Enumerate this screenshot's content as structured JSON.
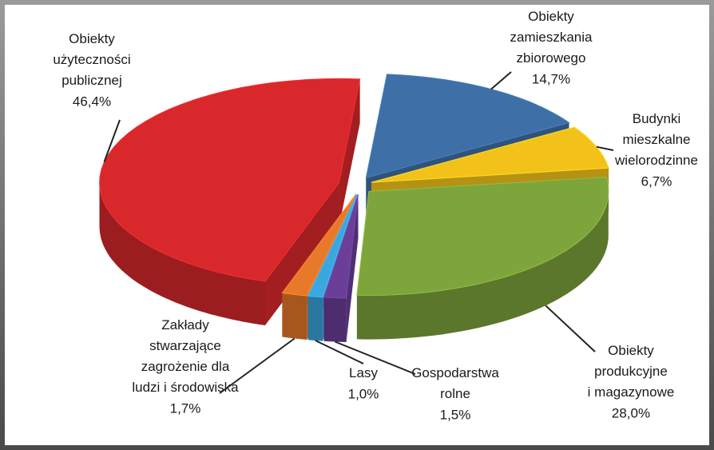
{
  "chart_data": {
    "type": "pie",
    "categories": [
      "Obiekty\nzamieszkania\nzbiorowego",
      "Budynki\nmieszkalne\nwielorodzinne",
      "Obiekty\nprodukcyjne\ni magazynowe",
      "Gospodarstwa\nrolne",
      "Lasy",
      "Zakłady\nstwarzające\nzagrożenie dla\nludzi i środowiska",
      "Obiekty\nużyteczności\npublicznej"
    ],
    "values": [
      14.7,
      6.7,
      28.0,
      1.5,
      1.0,
      1.7,
      46.4
    ],
    "value_labels": [
      "14,7%",
      "6,7%",
      "28,0%",
      "1,5%",
      "1,0%",
      "1,7%",
      "46,4%"
    ],
    "colors": [
      "#3e6fa6",
      "#f2c21b",
      "#7ea53c",
      "#6b3f98",
      "#3aa7df",
      "#e8792a",
      "#d8282c"
    ]
  }
}
